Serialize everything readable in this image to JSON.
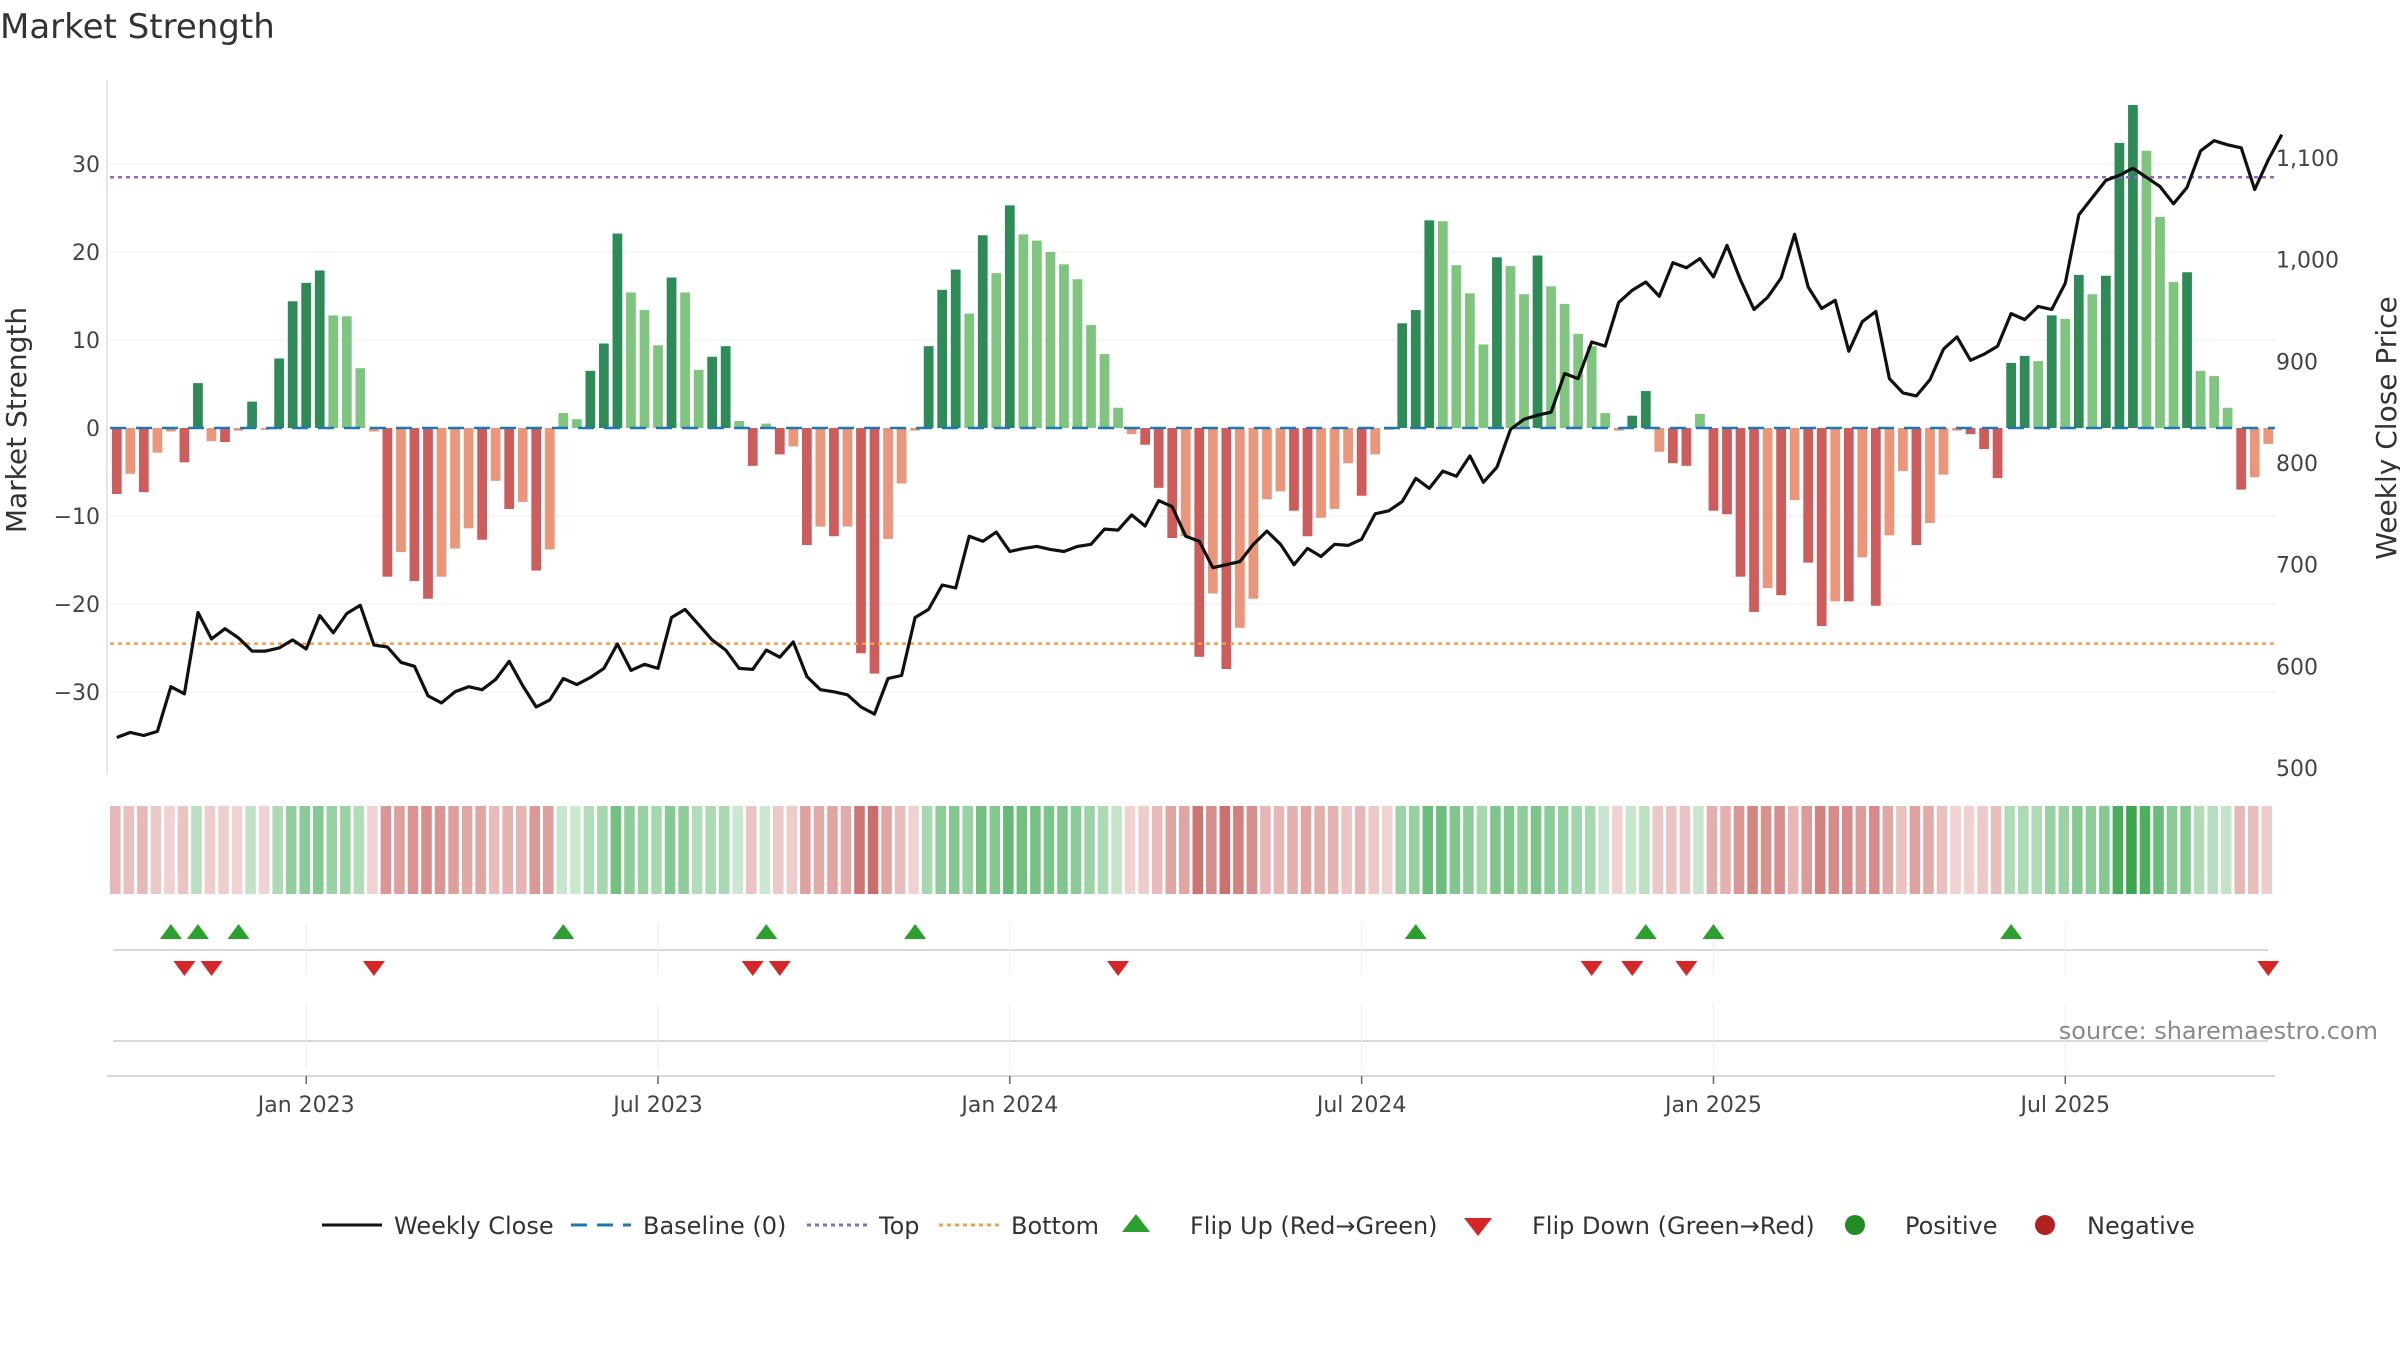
{
  "chart_data": {
    "type": "bar",
    "title": "Market Strength",
    "ylabel": "Market Strength",
    "y2label": "Weekly Close Price",
    "ylim": [
      -40,
      40
    ],
    "y2lim": [
      480,
      1160
    ],
    "yticks": [
      {
        "v": 30,
        "label": "30"
      },
      {
        "v": 20,
        "label": "20"
      },
      {
        "v": 10,
        "label": "10"
      },
      {
        "v": 0,
        "label": "0"
      },
      {
        "v": -10,
        "label": "−10"
      },
      {
        "v": -20,
        "label": "−20"
      },
      {
        "v": -30,
        "label": "−30"
      }
    ],
    "y2ticks": [
      {
        "v": 1100,
        "label": "1,100"
      },
      {
        "v": 1000,
        "label": "1,000"
      },
      {
        "v": 900,
        "label": "900"
      },
      {
        "v": 800,
        "label": "800"
      },
      {
        "v": 700,
        "label": "700"
      },
      {
        "v": 600,
        "label": "600"
      },
      {
        "v": 500,
        "label": "500"
      }
    ],
    "xticks": [
      {
        "i": 14.5,
        "label": "Jan 2023"
      },
      {
        "i": 40.5,
        "label": "Jul 2023"
      },
      {
        "i": 66.5,
        "label": "Jan 2024"
      },
      {
        "i": 92.5,
        "label": "Jul 2024"
      },
      {
        "i": 118.5,
        "label": "Jan 2025"
      },
      {
        "i": 144.5,
        "label": "Jul 2025"
      }
    ],
    "reference_lines": {
      "top": 28.5,
      "bottom": -24.5,
      "baseline": 0
    },
    "strength": [
      -7.5,
      -5.2,
      -7.3,
      -2.8,
      -0.4,
      -3.9,
      5.1,
      -1.5,
      -1.6,
      -0.3,
      3.0,
      -0.2,
      7.9,
      14.4,
      16.5,
      17.9,
      12.8,
      12.7,
      6.8,
      -0.4,
      -16.9,
      -14.1,
      -17.4,
      -19.4,
      -16.9,
      -13.7,
      -11.4,
      -12.7,
      -6.0,
      -9.2,
      -8.4,
      -16.2,
      -13.8,
      1.7,
      1.0,
      6.5,
      9.6,
      22.1,
      15.4,
      13.4,
      9.4,
      17.1,
      15.4,
      6.6,
      8.1,
      9.3,
      0.8,
      -4.3,
      0.5,
      -3.0,
      -2.1,
      -13.3,
      -11.2,
      -12.3,
      -11.2,
      -25.6,
      -27.9,
      -12.6,
      -6.3,
      -0.3,
      9.3,
      15.7,
      18.0,
      13.0,
      21.9,
      17.6,
      25.3,
      22.0,
      21.3,
      20.0,
      18.6,
      16.9,
      11.7,
      8.4,
      2.3,
      -0.7,
      -1.9,
      -6.8,
      -12.5,
      -12.3,
      -26.0,
      -18.8,
      -27.4,
      -22.7,
      -19.4,
      -8.1,
      -7.2,
      -9.4,
      -12.3,
      -10.2,
      -9.2,
      -4.0,
      -7.7,
      -3.0,
      -0.2,
      11.9,
      13.4,
      23.6,
      23.5,
      18.5,
      15.3,
      9.5,
      19.4,
      18.4,
      15.2,
      19.6,
      16.1,
      14.1,
      10.7,
      9.3,
      1.7,
      -0.3,
      1.4,
      4.2,
      -2.7,
      -4.0,
      -4.3,
      1.6,
      -9.4,
      -9.8,
      -16.9,
      -20.9,
      -18.2,
      -19.0,
      -8.2,
      -15.3,
      -22.5,
      -19.7,
      -19.7,
      -14.7,
      -20.2,
      -12.2,
      -4.9,
      -13.3,
      -10.8,
      -5.3,
      -0.3,
      -0.7,
      -2.4,
      -5.7,
      7.4,
      8.2,
      7.6,
      12.8,
      12.4,
      17.4,
      15.2,
      17.3,
      32.4,
      36.7,
      31.5,
      24.0,
      16.6,
      17.7,
      6.5,
      5.9,
      2.3,
      -7.0,
      -5.6,
      -1.8
    ],
    "weekly_close": [
      530,
      535,
      532,
      536,
      580,
      573,
      653,
      627,
      637,
      628,
      615,
      615,
      618,
      626,
      617,
      650,
      633,
      652,
      660,
      621,
      619,
      604,
      600,
      571,
      564,
      575,
      580,
      577,
      587,
      605,
      581,
      560,
      567,
      588,
      582,
      589,
      598,
      622,
      596,
      602,
      598,
      648,
      656,
      641,
      626,
      616,
      598,
      597,
      616,
      609,
      624,
      590,
      577,
      575,
      572,
      560,
      553,
      588,
      591,
      648,
      656,
      680,
      677,
      728,
      723,
      732,
      713,
      716,
      718,
      715,
      713,
      718,
      720,
      735,
      734,
      749,
      738,
      763,
      757,
      728,
      723,
      697,
      700,
      703,
      720,
      733,
      720,
      700,
      716,
      708,
      720,
      719,
      725,
      750,
      753,
      762,
      785,
      775,
      792,
      787,
      807,
      781,
      796,
      833,
      843,
      847,
      850,
      888,
      883,
      919,
      915,
      958,
      970,
      978,
      964,
      997,
      992,
      1001,
      983,
      1014,
      980,
      951,
      963,
      982,
      1025,
      973,
      952,
      960,
      910,
      939,
      949,
      883,
      869,
      866,
      882,
      912,
      924,
      901,
      907,
      915,
      947,
      941,
      954,
      951,
      977,
      1044,
      1061,
      1078,
      1083,
      1090,
      1081,
      1072,
      1055,
      1071,
      1107,
      1117,
      1113,
      1110,
      1069,
      1098,
      1123
    ]
  },
  "flips": {
    "up_indices": [
      4,
      6,
      9,
      33,
      48,
      59,
      96,
      113,
      118,
      140
    ],
    "down_indices": [
      5,
      7,
      19,
      47,
      49,
      74,
      109,
      112,
      116,
      159
    ]
  },
  "legend": [
    {
      "key": "weekly-close",
      "label": "Weekly Close"
    },
    {
      "key": "baseline",
      "label": "Baseline (0)"
    },
    {
      "key": "top",
      "label": "Top"
    },
    {
      "key": "bottom",
      "label": "Bottom"
    },
    {
      "key": "flip-up",
      "label": "Flip Up (Red→Green)"
    },
    {
      "key": "flip-down",
      "label": "Flip Down (Green→Red)"
    },
    {
      "key": "positive",
      "label": "Positive"
    },
    {
      "key": "negative",
      "label": "Negative"
    }
  ],
  "source": "source: sharemaestro.com",
  "colors": {
    "green_dark": "#2e8b57",
    "green_light": "#7fc47f",
    "red_dark": "#cd5c5c",
    "red_light": "#e9967a",
    "price_line": "#111111",
    "baseline": "#1f77b4",
    "top_line": "#9467bd",
    "bottom_line": "#f0a050",
    "flip_up": "#2ca02c",
    "flip_down": "#d62728",
    "positive_dot": "#228b22",
    "negative_dot": "#b22222"
  }
}
